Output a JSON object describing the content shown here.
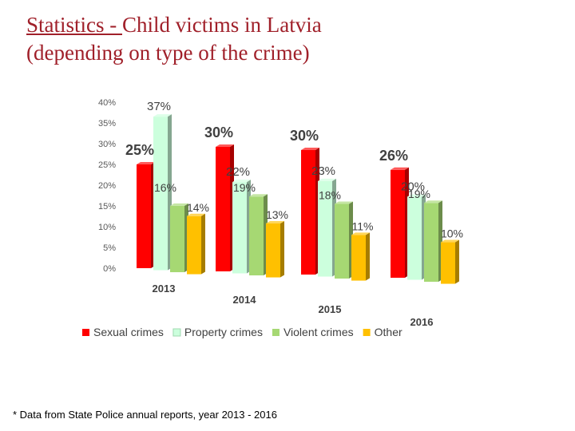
{
  "slide": {
    "title_part1": "Statistics - ",
    "title_part2": "Child victims in Latvia",
    "title_line2": "(depending on type of the crime)",
    "footnote": "* Data from State Police annual reports, year 2013 - 2016"
  },
  "chart_data": {
    "type": "bar",
    "title": "",
    "xlabel": "",
    "ylabel": "",
    "ylim": [
      0,
      40
    ],
    "y_ticks": [
      "0%",
      "5%",
      "10%",
      "15%",
      "20%",
      "25%",
      "30%",
      "35%",
      "40%"
    ],
    "categories": [
      "2013",
      "2014",
      "2015",
      "2016"
    ],
    "series": [
      {
        "name": "Sexual crimes",
        "color": "#ff0000",
        "values": [
          25,
          30,
          30,
          26
        ],
        "labels": [
          "25%",
          "30%",
          "30%",
          "26%"
        ]
      },
      {
        "name": "Property crimes",
        "color": "#ccffdd",
        "values": [
          37,
          22,
          23,
          20
        ],
        "labels": [
          "37%",
          "22%",
          "23%",
          "20%"
        ]
      },
      {
        "name": "Violent crimes",
        "color": "#a6d873",
        "values": [
          16,
          19,
          18,
          19
        ],
        "labels": [
          "16%",
          "19%",
          "18%",
          "19%"
        ]
      },
      {
        "name": "Other",
        "color": "#ffc000",
        "values": [
          14,
          13,
          11,
          10
        ],
        "labels": [
          "14%",
          "13%",
          "11%",
          "10%"
        ]
      }
    ],
    "grid": false,
    "legend_position": "bottom",
    "style": "3d-columns"
  }
}
